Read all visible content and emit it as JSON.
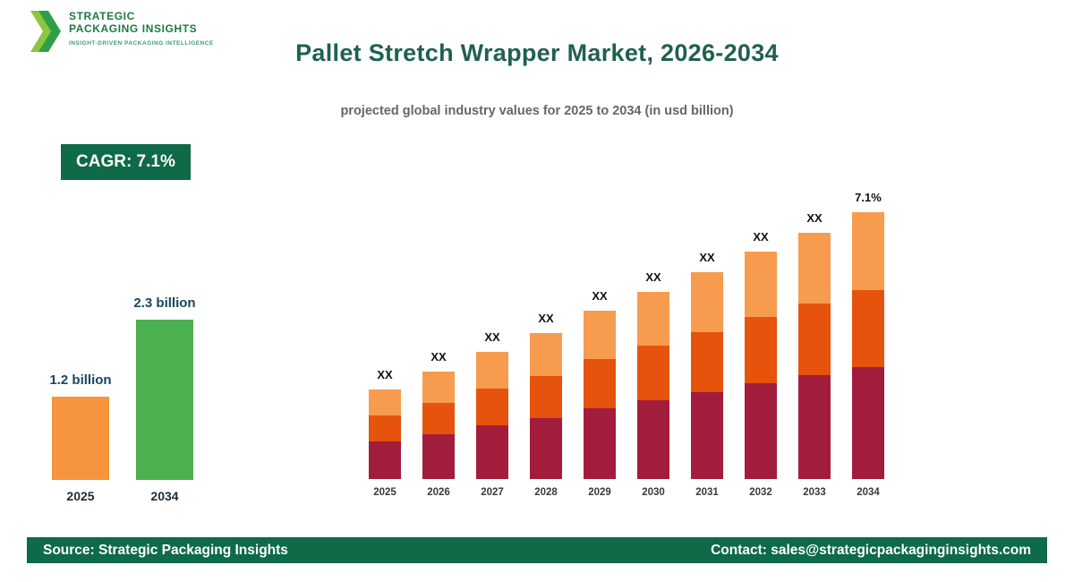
{
  "logo": {
    "line1": "STRATEGIC",
    "line2": "PACKAGING INSIGHTS",
    "tagline": "INSIGHT-DRIVEN PACKAGING INTELLIGENCE"
  },
  "header": {
    "title": "Pallet Stretch Wrapper Market, 2026-2034",
    "subtitle": "projected global industry values for 2025 to 2034 (in usd billion)"
  },
  "cagr_badge": "CAGR: 7.1%",
  "summary_chart": {
    "type": "bar",
    "max_value": 2.3,
    "bars": [
      {
        "year": "2025",
        "label": "1.2 billion",
        "value": 1.2,
        "color": "#F6953E"
      },
      {
        "year": "2034",
        "label": "2.3 billion",
        "value": 2.3,
        "color": "#4CAF50"
      }
    ]
  },
  "chart_data": {
    "type": "bar",
    "stacked": true,
    "title": "Pallet Stretch Wrapper Market, 2026-2034",
    "subtitle": "projected global industry values for 2025 to 2034 (in usd billion)",
    "note": "bar values shown as XX placeholders; heights are schematic relative units",
    "categories": [
      "2025",
      "2026",
      "2027",
      "2028",
      "2029",
      "2030",
      "2031",
      "2032",
      "2033",
      "2034"
    ],
    "bar_labels": [
      "XX",
      "XX",
      "XX",
      "XX",
      "XX",
      "XX",
      "XX",
      "XX",
      "XX",
      "7.1%"
    ],
    "series": [
      {
        "name": "bottom",
        "color": "#A21C3B",
        "values": [
          42,
          50,
          60,
          68,
          79,
          88,
          97,
          107,
          116,
          125
        ]
      },
      {
        "name": "middle",
        "color": "#E5530C",
        "values": [
          29,
          35,
          41,
          47,
          55,
          61,
          67,
          74,
          80,
          86
        ]
      },
      {
        "name": "top",
        "color": "#F79C4F",
        "values": [
          29,
          35,
          41,
          48,
          54,
          60,
          67,
          73,
          79,
          87
        ]
      }
    ],
    "legend": "none",
    "grid": false
  },
  "colors": {
    "brand_dark_green": "#0E6A47",
    "title_green": "#20604F",
    "logo_green": "#1C7A40",
    "summary_label_navy": "#17485F"
  },
  "footer": {
    "source": "Source: Strategic Packaging Insights",
    "contact": "Contact: sales@strategicpackaginginsights.com"
  }
}
